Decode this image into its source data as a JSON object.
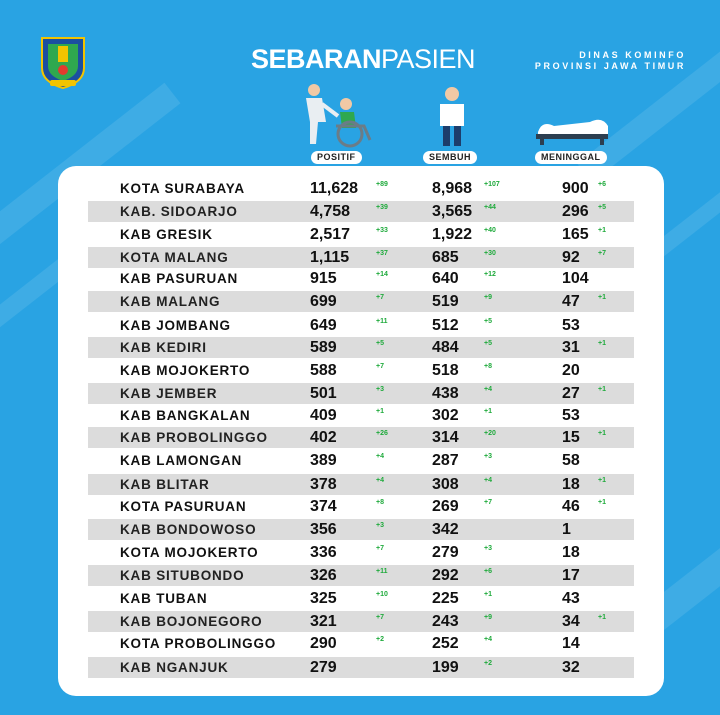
{
  "title": {
    "bold": "SEBARAN",
    "light": "PASIEN"
  },
  "agency": {
    "line1": "DINAS KOMINFO",
    "line2": "PROVINSI JAWA TIMUR"
  },
  "columns": {
    "positif": "POSITIF",
    "sembuh": "SEMBUH",
    "meninggal": "MENINGGAL"
  },
  "colors": {
    "background": "#29a3e3",
    "delta": "#1faa3c",
    "row_shade": "#dcdcdc"
  },
  "icons": {
    "logo": "east-java-emblem-icon",
    "positif": "wheelchair-patient-icon",
    "sembuh": "recovered-person-icon",
    "meninggal": "hospital-bed-icon"
  },
  "rows": [
    {
      "name": "KOTA SURABAYA",
      "positif": "11,628",
      "positif_delta": "+89",
      "sembuh": "8,968",
      "sembuh_delta": "+107",
      "meninggal": "900",
      "meninggal_delta": "+6"
    },
    {
      "name": "KAB. SIDOARJO",
      "positif": "4,758",
      "positif_delta": "+39",
      "sembuh": "3,565",
      "sembuh_delta": "+44",
      "meninggal": "296",
      "meninggal_delta": "+5"
    },
    {
      "name": "KAB GRESIK",
      "positif": "2,517",
      "positif_delta": "+33",
      "sembuh": "1,922",
      "sembuh_delta": "+40",
      "meninggal": "165",
      "meninggal_delta": "+1"
    },
    {
      "name": "KOTA MALANG",
      "positif": "1,115",
      "positif_delta": "+37",
      "sembuh": "685",
      "sembuh_delta": "+30",
      "meninggal": "92",
      "meninggal_delta": "+7"
    },
    {
      "name": "KAB PASURUAN",
      "positif": "915",
      "positif_delta": "+14",
      "sembuh": "640",
      "sembuh_delta": "+12",
      "meninggal": "104",
      "meninggal_delta": ""
    },
    {
      "name": "KAB MALANG",
      "positif": "699",
      "positif_delta": "+7",
      "sembuh": "519",
      "sembuh_delta": "+9",
      "meninggal": "47",
      "meninggal_delta": "+1"
    },
    {
      "name": "KAB JOMBANG",
      "positif": "649",
      "positif_delta": "+11",
      "sembuh": "512",
      "sembuh_delta": "+5",
      "meninggal": "53",
      "meninggal_delta": ""
    },
    {
      "name": "KAB KEDIRI",
      "positif": "589",
      "positif_delta": "+5",
      "sembuh": "484",
      "sembuh_delta": "+5",
      "meninggal": "31",
      "meninggal_delta": "+1"
    },
    {
      "name": "KAB MOJOKERTO",
      "positif": "588",
      "positif_delta": "+7",
      "sembuh": "518",
      "sembuh_delta": "+8",
      "meninggal": "20",
      "meninggal_delta": ""
    },
    {
      "name": "KAB JEMBER",
      "positif": "501",
      "positif_delta": "+3",
      "sembuh": "438",
      "sembuh_delta": "+4",
      "meninggal": "27",
      "meninggal_delta": "+1"
    },
    {
      "name": "KAB BANGKALAN",
      "positif": "409",
      "positif_delta": "+1",
      "sembuh": "302",
      "sembuh_delta": "+1",
      "meninggal": "53",
      "meninggal_delta": ""
    },
    {
      "name": "KAB PROBOLINGGO",
      "positif": "402",
      "positif_delta": "+26",
      "sembuh": "314",
      "sembuh_delta": "+20",
      "meninggal": "15",
      "meninggal_delta": "+1"
    },
    {
      "name": "KAB LAMONGAN",
      "positif": "389",
      "positif_delta": "+4",
      "sembuh": "287",
      "sembuh_delta": "+3",
      "meninggal": "58",
      "meninggal_delta": ""
    },
    {
      "name": "KAB BLITAR",
      "positif": "378",
      "positif_delta": "+4",
      "sembuh": "308",
      "sembuh_delta": "+4",
      "meninggal": "18",
      "meninggal_delta": "+1"
    },
    {
      "name": "KOTA PASURUAN",
      "positif": "374",
      "positif_delta": "+8",
      "sembuh": "269",
      "sembuh_delta": "+7",
      "meninggal": "46",
      "meninggal_delta": "+1"
    },
    {
      "name": "KAB BONDOWOSO",
      "positif": "356",
      "positif_delta": "+3",
      "sembuh": "342",
      "sembuh_delta": "",
      "meninggal": "1",
      "meninggal_delta": ""
    },
    {
      "name": "KOTA MOJOKERTO",
      "positif": "336",
      "positif_delta": "+7",
      "sembuh": "279",
      "sembuh_delta": "+3",
      "meninggal": "18",
      "meninggal_delta": ""
    },
    {
      "name": "KAB SITUBONDO",
      "positif": "326",
      "positif_delta": "+11",
      "sembuh": "292",
      "sembuh_delta": "+6",
      "meninggal": "17",
      "meninggal_delta": ""
    },
    {
      "name": "KAB TUBAN",
      "positif": "325",
      "positif_delta": "+10",
      "sembuh": "225",
      "sembuh_delta": "+1",
      "meninggal": "43",
      "meninggal_delta": ""
    },
    {
      "name": "KAB BOJONEGORO",
      "positif": "321",
      "positif_delta": "+7",
      "sembuh": "243",
      "sembuh_delta": "+9",
      "meninggal": "34",
      "meninggal_delta": "+1"
    },
    {
      "name": "KOTA PROBOLINGGO",
      "positif": "290",
      "positif_delta": "+2",
      "sembuh": "252",
      "sembuh_delta": "+4",
      "meninggal": "14",
      "meninggal_delta": ""
    },
    {
      "name": "KAB NGANJUK",
      "positif": "279",
      "positif_delta": "",
      "sembuh": "199",
      "sembuh_delta": "+2",
      "meninggal": "32",
      "meninggal_delta": ""
    }
  ]
}
